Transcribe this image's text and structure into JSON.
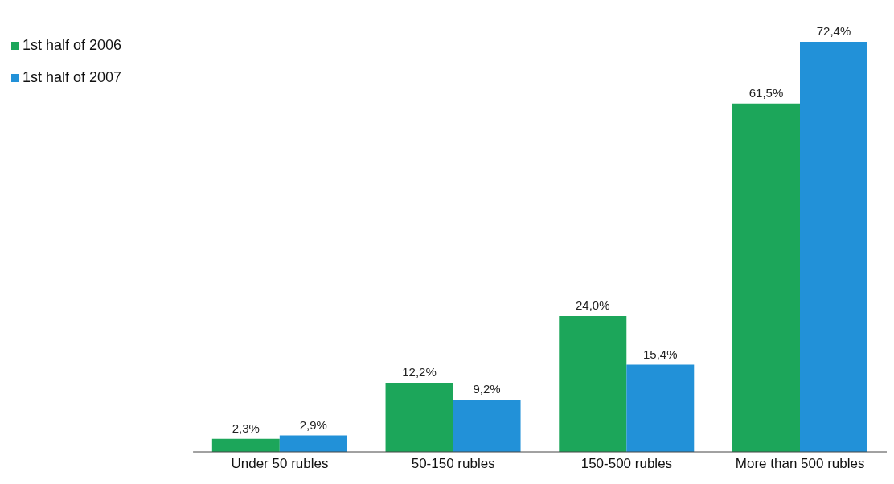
{
  "chart_data": {
    "type": "bar",
    "categories": [
      "Under 50 rubles",
      "50-150 rubles",
      "150-500 rubles",
      "More than 500 rubles"
    ],
    "series": [
      {
        "name": "1st half of 2006",
        "color": "#1ca65a",
        "values": [
          2.3,
          12.2,
          24.0,
          61.5
        ],
        "value_labels": [
          "2,3%",
          "12,2%",
          "24,0%",
          "61,5%"
        ]
      },
      {
        "name": "1st half of 2007",
        "color": "#2291d8",
        "values": [
          2.9,
          9.2,
          15.4,
          72.4
        ],
        "value_labels": [
          "2,9%",
          "9,2%",
          "15,4%",
          "72,4%"
        ]
      }
    ],
    "legend": "top left",
    "grid": false
  }
}
